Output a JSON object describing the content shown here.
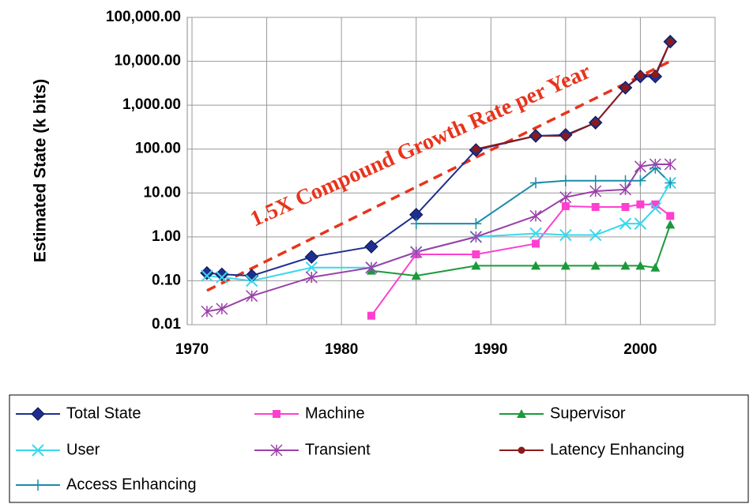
{
  "chart_data": {
    "type": "line",
    "y_label": "Estimated State (k bits)",
    "annotation": "1.5X Compound Growth Rate per Year",
    "log_y": true,
    "grid": true,
    "xlim": [
      1970,
      2005
    ],
    "xticks": [
      1970,
      1980,
      1990,
      2000
    ],
    "xgrid": [
      1975,
      1985,
      1995,
      2005
    ],
    "ylim": [
      0.01,
      100000
    ],
    "yticks": [
      0.01,
      {
        "value": 0.1,
        "label": "0.10"
      },
      {
        "value": 1,
        "label": "1.00"
      },
      {
        "value": 10,
        "label": "10.00"
      },
      {
        "value": 100,
        "label": "100.00"
      },
      {
        "value": 1000,
        "label": "1,000.00"
      },
      {
        "value": 10000,
        "label": "10,000.00"
      },
      {
        "value": 100000,
        "label": "100,000.00"
      }
    ],
    "legend": "bottom",
    "trend": {
      "x": [
        1971,
        2002
      ],
      "values": [
        0.06,
        10000
      ],
      "color": "#e8341c"
    },
    "series": [
      {
        "name": "Total State",
        "color": "#1f2f8f",
        "marker": "diamond",
        "x": [
          1971,
          1972,
          1974,
          1978,
          1982,
          1985,
          1989,
          1993,
          1995,
          1997,
          1999,
          2000,
          2001,
          2002
        ],
        "values": [
          0.15,
          0.14,
          0.13,
          0.35,
          0.6,
          3.2,
          95,
          200,
          210,
          400,
          2500,
          4500,
          4500,
          28000
        ]
      },
      {
        "name": "Machine",
        "color": "#ff3fd0",
        "marker": "square",
        "x": [
          1982,
          1985,
          1989,
          1993,
          1995,
          1997,
          1999,
          2000,
          2001,
          2002
        ],
        "values": [
          0.016,
          0.4,
          0.4,
          0.7,
          5,
          4.8,
          4.8,
          5.5,
          5.5,
          3
        ]
      },
      {
        "name": "Supervisor",
        "color": "#1a9a3a",
        "marker": "triangle",
        "x": [
          1982,
          1985,
          1989,
          1993,
          1995,
          1997,
          1999,
          2000,
          2001,
          2002
        ],
        "values": [
          0.17,
          0.13,
          0.22,
          0.22,
          0.22,
          0.22,
          0.22,
          0.22,
          0.2,
          1.9
        ]
      },
      {
        "name": "User",
        "color": "#3ad8ec",
        "marker": "x",
        "x": [
          1971,
          1972,
          1974,
          1978,
          1982,
          1985,
          1989,
          1993,
          1995,
          1997,
          1999,
          2000,
          2001,
          2002
        ],
        "values": [
          0.13,
          0.12,
          0.1,
          0.2,
          0.2,
          0.45,
          1.0,
          1.2,
          1.1,
          1.1,
          2,
          2,
          4.5,
          17
        ]
      },
      {
        "name": "Transient",
        "color": "#9a40a8",
        "marker": "star",
        "x": [
          1971,
          1972,
          1974,
          1978,
          1982,
          1985,
          1989,
          1993,
          1995,
          1997,
          1999,
          2000,
          2001,
          2002
        ],
        "values": [
          0.02,
          0.023,
          0.045,
          0.12,
          0.2,
          0.45,
          1.0,
          3,
          8,
          11,
          12,
          40,
          45,
          45
        ]
      },
      {
        "name": "Latency Enhancing",
        "color": "#8b1a1a",
        "marker": "circle",
        "x": [
          1989,
          1993,
          1995,
          1997,
          1999,
          2000,
          2001,
          2002
        ],
        "values": [
          100,
          200,
          200,
          400,
          2500,
          4800,
          5000,
          28000
        ]
      },
      {
        "name": "Access Enhancing",
        "color": "#1a8ca8",
        "marker": "plus",
        "x": [
          1985,
          1989,
          1993,
          1995,
          1997,
          1999,
          2000,
          2001,
          2002
        ],
        "values": [
          2,
          2,
          17,
          19,
          19,
          19,
          19,
          37,
          17
        ]
      }
    ]
  }
}
